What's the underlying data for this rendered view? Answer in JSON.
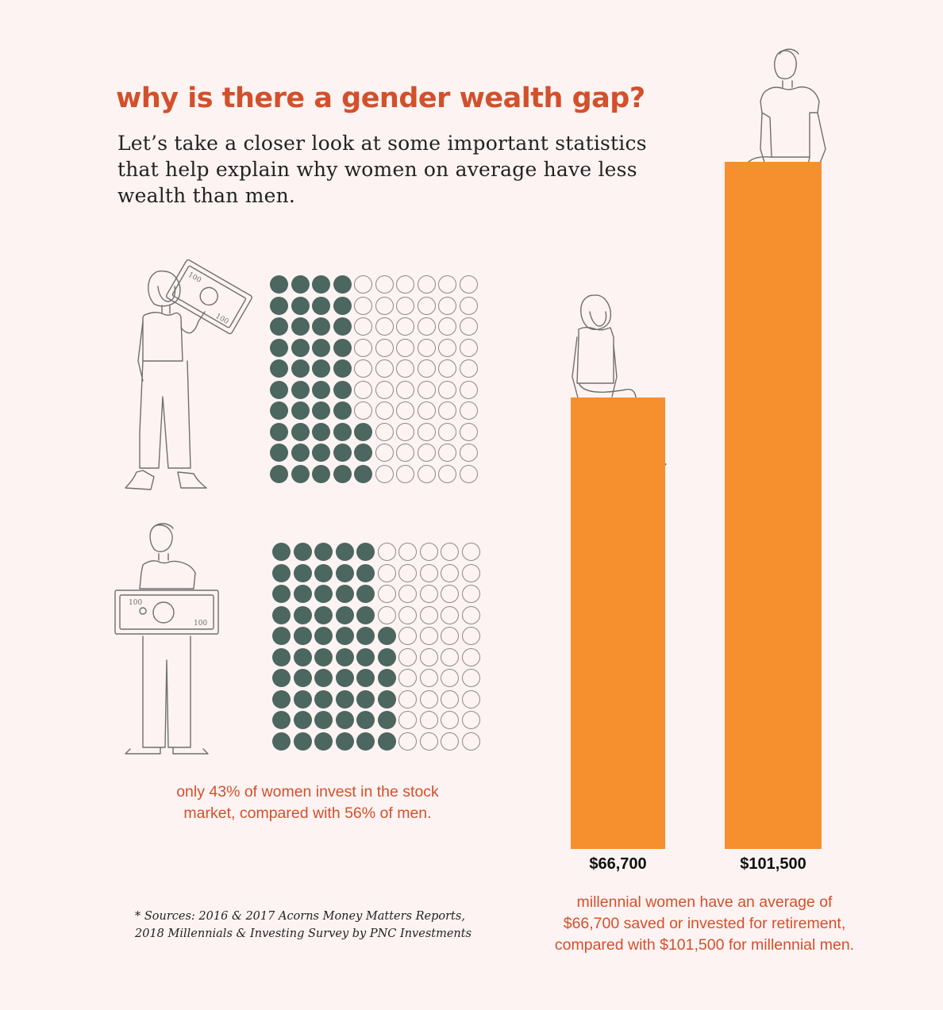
{
  "title": "why is there a gender wealth gap?",
  "subtitle": "Let’s take a closer look at some important statistics that help explain why women on average have less wealth than men.",
  "colors": {
    "accent": "#d2502c",
    "bar": "#f68f2e",
    "dot_filled": "#4c6660",
    "background": "#fdf3f2"
  },
  "icons": [
    "woman-holding-bill-icon",
    "man-holding-bill-icon",
    "woman-sitting-icon",
    "man-sitting-icon"
  ],
  "bill_denomination": "100",
  "invest_caption": "only 43% of women invest in the stock market, compared with 56% of men.",
  "retirement_caption": "millennial women have an average of $66,700 saved or invested for retirement, compared with $101,500 for millennial men.",
  "sources": {
    "line1": "* Sources: 2016 & 2017 Acorns Money Matters Reports,",
    "line2": "2018 Millennials & Investing Survey by PNC Investments"
  },
  "chart_data": [
    {
      "type": "waffle",
      "categories": [
        "women",
        "men"
      ],
      "values": [
        43,
        56
      ],
      "total": 100,
      "grid": "10x10"
    },
    {
      "type": "bar",
      "categories": [
        "$66,700",
        "$101,500"
      ],
      "values": [
        66700,
        101500
      ],
      "grid": false
    }
  ]
}
